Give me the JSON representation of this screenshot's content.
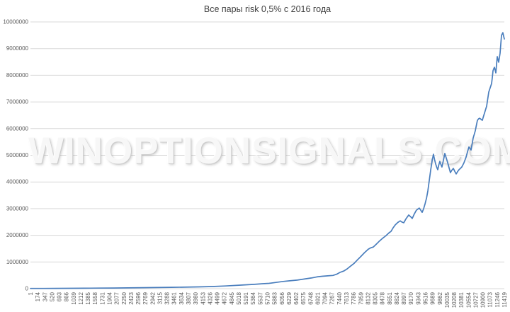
{
  "title": "Все пары risk 0,5% с 2016 года",
  "watermark": {
    "text": "WINOPTIONSIGNALS.COM"
  },
  "chart_data": {
    "type": "line",
    "title": "Все пары risk 0,5% с 2016 года",
    "xlabel": "",
    "ylabel": "",
    "x_min": 1,
    "x_max": 11419,
    "ylim": [
      0,
      10000000
    ],
    "grid": "horizontal",
    "legend": "none",
    "line_color": "#4a7ebd",
    "gridline_color": "#d9d9d9",
    "axis_label_color": "#595959",
    "title_color": "#3f3f3f",
    "y_tick_values": [
      0,
      1000000,
      2000000,
      3000000,
      4000000,
      5000000,
      6000000,
      7000000,
      8000000,
      9000000,
      10000000
    ],
    "x_tick_labels": [
      1,
      174,
      347,
      520,
      693,
      866,
      1039,
      1212,
      1385,
      1558,
      1731,
      1904,
      2077,
      2250,
      2423,
      2596,
      2769,
      2942,
      3115,
      3288,
      3461,
      3634,
      3807,
      3980,
      4153,
      4326,
      4499,
      4672,
      4845,
      5018,
      5191,
      5364,
      5537,
      5710,
      5883,
      6056,
      6229,
      6402,
      6575,
      6748,
      6921,
      7094,
      7267,
      7440,
      7613,
      7786,
      7959,
      8132,
      8305,
      8478,
      8651,
      8824,
      8997,
      9170,
      9343,
      9516,
      9689,
      9862,
      10035,
      10208,
      10381,
      10554,
      10727,
      10900,
      11073,
      11246,
      11419
    ],
    "series": [
      {
        "points": [
          [
            1,
            8000
          ],
          [
            300,
            9000
          ],
          [
            600,
            10500
          ],
          [
            965,
            13000
          ],
          [
            1300,
            16000
          ],
          [
            1650,
            20000
          ],
          [
            2000,
            25000
          ],
          [
            2350,
            30000
          ],
          [
            2700,
            36000
          ],
          [
            3050,
            43000
          ],
          [
            3400,
            50000
          ],
          [
            3700,
            56000
          ],
          [
            4050,
            66000
          ],
          [
            4382,
            80000
          ],
          [
            4700,
            100000
          ],
          [
            5065,
            133000
          ],
          [
            5250,
            148000
          ],
          [
            5400,
            163000
          ],
          [
            5600,
            185000
          ],
          [
            5750,
            200000
          ],
          [
            5900,
            230000
          ],
          [
            6090,
            270000
          ],
          [
            6250,
            295000
          ],
          [
            6430,
            320000
          ],
          [
            6600,
            360000
          ],
          [
            6770,
            400000
          ],
          [
            6900,
            440000
          ],
          [
            7030,
            465000
          ],
          [
            7160,
            480000
          ],
          [
            7290,
            495000
          ],
          [
            7380,
            540000
          ],
          [
            7460,
            610000
          ],
          [
            7550,
            660000
          ],
          [
            7630,
            740000
          ],
          [
            7710,
            840000
          ],
          [
            7800,
            950000
          ],
          [
            7880,
            1080000
          ],
          [
            7970,
            1220000
          ],
          [
            8050,
            1350000
          ],
          [
            8140,
            1480000
          ],
          [
            8200,
            1530000
          ],
          [
            8260,
            1560000
          ],
          [
            8330,
            1660000
          ],
          [
            8400,
            1770000
          ],
          [
            8480,
            1880000
          ],
          [
            8570,
            1990000
          ],
          [
            8630,
            2080000
          ],
          [
            8690,
            2150000
          ],
          [
            8740,
            2280000
          ],
          [
            8790,
            2390000
          ],
          [
            8850,
            2480000
          ],
          [
            8910,
            2540000
          ],
          [
            8950,
            2500000
          ],
          [
            8995,
            2470000
          ],
          [
            9050,
            2620000
          ],
          [
            9115,
            2760000
          ],
          [
            9160,
            2700000
          ],
          [
            9200,
            2630000
          ],
          [
            9250,
            2800000
          ],
          [
            9300,
            2940000
          ],
          [
            9370,
            3020000
          ],
          [
            9410,
            2930000
          ],
          [
            9440,
            2860000
          ],
          [
            9475,
            3000000
          ],
          [
            9510,
            3180000
          ],
          [
            9545,
            3400000
          ],
          [
            9575,
            3660000
          ],
          [
            9610,
            4050000
          ],
          [
            9645,
            4460000
          ],
          [
            9680,
            4800000
          ],
          [
            9711,
            5040000
          ],
          [
            9740,
            4830000
          ],
          [
            9765,
            4670000
          ],
          [
            9790,
            4550000
          ],
          [
            9815,
            4460000
          ],
          [
            9840,
            4640000
          ],
          [
            9865,
            4770000
          ],
          [
            9890,
            4660000
          ],
          [
            9916,
            4560000
          ],
          [
            9950,
            4800000
          ],
          [
            9985,
            5070000
          ],
          [
            10020,
            4900000
          ],
          [
            10055,
            4720000
          ],
          [
            10090,
            4520000
          ],
          [
            10121,
            4350000
          ],
          [
            10155,
            4440000
          ],
          [
            10190,
            4510000
          ],
          [
            10225,
            4400000
          ],
          [
            10258,
            4300000
          ],
          [
            10290,
            4380000
          ],
          [
            10326,
            4460000
          ],
          [
            10360,
            4510000
          ],
          [
            10394,
            4560000
          ],
          [
            10446,
            4720000
          ],
          [
            10497,
            4930000
          ],
          [
            10530,
            5120000
          ],
          [
            10565,
            5310000
          ],
          [
            10590,
            5260000
          ],
          [
            10616,
            5200000
          ],
          [
            10642,
            5420000
          ],
          [
            10668,
            5650000
          ],
          [
            10695,
            5790000
          ],
          [
            10719,
            5920000
          ],
          [
            10745,
            6120000
          ],
          [
            10770,
            6310000
          ],
          [
            10795,
            6360000
          ],
          [
            10821,
            6390000
          ],
          [
            10855,
            6350000
          ],
          [
            10889,
            6310000
          ],
          [
            10915,
            6450000
          ],
          [
            10941,
            6580000
          ],
          [
            10966,
            6710000
          ],
          [
            10992,
            6840000
          ],
          [
            11018,
            7100000
          ],
          [
            11043,
            7370000
          ],
          [
            11077,
            7530000
          ],
          [
            11111,
            7690000
          ],
          [
            11130,
            7930000
          ],
          [
            11146,
            8170000
          ],
          [
            11163,
            8240000
          ],
          [
            11180,
            8300000
          ],
          [
            11197,
            8200000
          ],
          [
            11214,
            8090000
          ],
          [
            11231,
            8400000
          ],
          [
            11248,
            8700000
          ],
          [
            11265,
            8600000
          ],
          [
            11282,
            8490000
          ],
          [
            11299,
            8660000
          ],
          [
            11316,
            8830000
          ],
          [
            11333,
            9170000
          ],
          [
            11350,
            9500000
          ],
          [
            11367,
            9550000
          ],
          [
            11384,
            9600000
          ],
          [
            11400,
            9480000
          ],
          [
            11419,
            9360000
          ]
        ]
      }
    ]
  }
}
